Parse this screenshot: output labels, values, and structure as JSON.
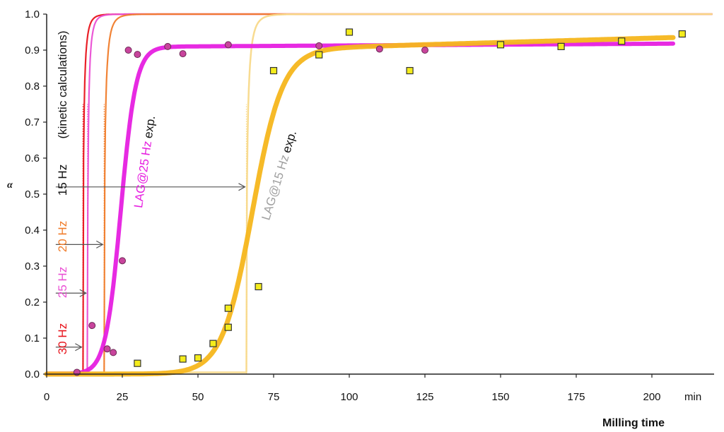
{
  "chart_data": {
    "type": "scatter",
    "xlabel": "Milling time",
    "x_unit": "min",
    "ylabel": "α",
    "xlim": [
      0,
      220
    ],
    "ylim": [
      0,
      1.0
    ],
    "x_ticks": [
      "0",
      "25",
      "50",
      "75",
      "100",
      "125",
      "150",
      "175",
      "200"
    ],
    "y_ticks": [
      "0.0",
      "0.1",
      "0.2",
      "0.3",
      "0.4",
      "0.5",
      "0.6",
      "0.7",
      "0.8",
      "0.9",
      "1.0"
    ],
    "kinetic_label": "(kinetic calculations)",
    "colors": {
      "hz30": "#e8141c",
      "hz25": "#ea4fd4",
      "hz20": "#f07c2a",
      "hz15": "#f8d98a",
      "lag25_line": "#e61fe0",
      "lag25_point": "#c8449c",
      "lag15_line": "#f6b61c",
      "lag15_point": "#f4ec1c",
      "lag15_text": "#a0a0a0"
    },
    "kinetic_curves": [
      {
        "label": "30 Hz",
        "color_key": "hz30",
        "onset": 12,
        "slope": 1.8
      },
      {
        "label": "25 Hz",
        "color_key": "hz25",
        "onset": 13.5,
        "slope": 1.8
      },
      {
        "label": "20 Hz",
        "color_key": "hz20",
        "onset": 19,
        "slope": 1.4
      },
      {
        "label": "15 Hz",
        "color_key": "hz15",
        "onset": 66,
        "slope": 1.2
      }
    ],
    "arrows": [
      {
        "label": "30 Hz",
        "color_key": "hz30",
        "y": 0.075,
        "x_from": 3,
        "x_to": 12
      },
      {
        "label": "25 Hz",
        "color_key": "hz25",
        "y": 0.225,
        "x_from": 3,
        "x_to": 13.5
      },
      {
        "label": "20 Hz",
        "color_key": "hz20",
        "y": 0.36,
        "x_from": 3,
        "x_to": 19
      },
      {
        "label": "15 Hz",
        "color_key": "hz15",
        "y": 0.52,
        "x_from": 3,
        "x_to": 66
      }
    ],
    "series": [
      {
        "name": "LAG@25 Hz",
        "suffix": "exp.",
        "color_key": "lag25_line",
        "point_color_key": "lag25_point",
        "marker": "circle",
        "points": [
          [
            10,
            0.005
          ],
          [
            15,
            0.135
          ],
          [
            20,
            0.07
          ],
          [
            22,
            0.06
          ],
          [
            25,
            0.315
          ],
          [
            27,
            0.9
          ],
          [
            30,
            0.888
          ],
          [
            40,
            0.91
          ],
          [
            45,
            0.89
          ],
          [
            60,
            0.915
          ],
          [
            90,
            0.912
          ],
          [
            110,
            0.903
          ],
          [
            125,
            0.9
          ]
        ],
        "fit": {
          "plateau": 0.91,
          "end_plateau": 0.918,
          "mid": 24.5,
          "rate": 0.4,
          "x_end": 207
        }
      },
      {
        "name": "LAG@15 Hz",
        "suffix": "exp.",
        "color_key": "lag15_line",
        "point_color_key": "lag15_point",
        "marker": "square",
        "points": [
          [
            30,
            0.03
          ],
          [
            45,
            0.042
          ],
          [
            50,
            0.045
          ],
          [
            55,
            0.085
          ],
          [
            60,
            0.13
          ],
          [
            60,
            0.183
          ],
          [
            70,
            0.243
          ],
          [
            75,
            0.843
          ],
          [
            90,
            0.887
          ],
          [
            100,
            0.95
          ],
          [
            120,
            0.843
          ],
          [
            150,
            0.915
          ],
          [
            170,
            0.91
          ],
          [
            190,
            0.925
          ],
          [
            210,
            0.945
          ]
        ],
        "fit": {
          "plateau": 0.905,
          "end_plateau": 0.935,
          "mid": 68,
          "rate": 0.2,
          "x_end": 207
        }
      }
    ]
  }
}
